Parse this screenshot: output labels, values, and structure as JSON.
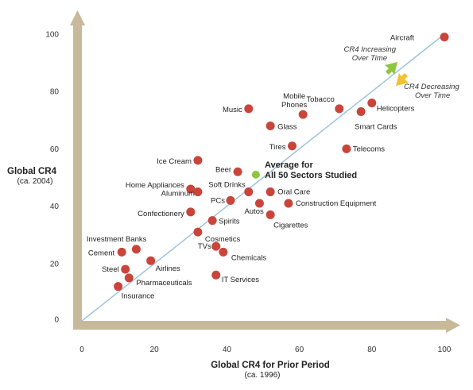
{
  "chart_data": {
    "type": "scatter",
    "xlabel": "Global CR4 for Prior Period",
    "xlabel_sub": "(ca. 1996)",
    "ylabel": "Global CR4",
    "ylabel_sub": "(ca. 2004)",
    "xlim": [
      0,
      100
    ],
    "ylim": [
      0,
      100
    ],
    "xticks": [
      "0",
      "20",
      "40",
      "60",
      "80",
      "100"
    ],
    "yticks": [
      "0",
      "20",
      "40",
      "60",
      "80",
      "100"
    ],
    "grid": false,
    "diagonal": "y = x",
    "colors": {
      "point": "#c9453b",
      "average": "#8dc63f",
      "axis": "#c8b99a",
      "diagonal": "#9ec3e0",
      "increase_arrow": "#8dc63f",
      "decrease_arrow": "#f2c230"
    },
    "points": [
      {
        "label": "Aircraft",
        "x": 100,
        "y": 99
      },
      {
        "label": "Tobacco",
        "x": 71,
        "y": 74
      },
      {
        "label": "Helicopters",
        "x": 80,
        "y": 76
      },
      {
        "label": "Smart Cards",
        "x": 77,
        "y": 73
      },
      {
        "label": "Telecoms",
        "x": 73,
        "y": 60
      },
      {
        "label": "Mobile Phones",
        "x": 61,
        "y": 72
      },
      {
        "label": "Music",
        "x": 46,
        "y": 74
      },
      {
        "label": "Glass",
        "x": 52,
        "y": 68
      },
      {
        "label": "Tires",
        "x": 58,
        "y": 61
      },
      {
        "label": "Ice Cream",
        "x": 32,
        "y": 56
      },
      {
        "label": "Beer",
        "x": 43,
        "y": 52
      },
      {
        "label": "Soft Drinks",
        "x": 46,
        "y": 45
      },
      {
        "label": "Oral Care",
        "x": 52,
        "y": 45
      },
      {
        "label": "Home Appliances",
        "x": 30,
        "y": 46
      },
      {
        "label": "Aluminum",
        "x": 32,
        "y": 45
      },
      {
        "label": "PCs",
        "x": 41,
        "y": 42
      },
      {
        "label": "Autos",
        "x": 49,
        "y": 41
      },
      {
        "label": "Construction Equipment",
        "x": 57,
        "y": 41
      },
      {
        "label": "Cigarettes",
        "x": 52,
        "y": 37
      },
      {
        "label": "Confectionery",
        "x": 30,
        "y": 38
      },
      {
        "label": "Spirits",
        "x": 36,
        "y": 35
      },
      {
        "label": "Cosmetics",
        "x": 32,
        "y": 31
      },
      {
        "label": "Investment Banks",
        "x": 15,
        "y": 25
      },
      {
        "label": "Cement",
        "x": 11,
        "y": 24
      },
      {
        "label": "TVs",
        "x": 37,
        "y": 26
      },
      {
        "label": "Chemicals",
        "x": 39,
        "y": 24
      },
      {
        "label": "Airlines",
        "x": 19,
        "y": 21
      },
      {
        "label": "Steel",
        "x": 12,
        "y": 18
      },
      {
        "label": "Pharmaceuticals",
        "x": 13,
        "y": 15
      },
      {
        "label": "IT Services",
        "x": 37,
        "y": 16
      },
      {
        "label": "Insurance",
        "x": 10,
        "y": 12
      }
    ],
    "average": {
      "label_line1": "Average for",
      "label_line2": "All 50 Sectors Studied",
      "x": 48,
      "y": 51
    },
    "annotations": {
      "increasing": [
        "CR4 Increasing",
        "Over Time"
      ],
      "decreasing": [
        "CR4 Decreasing",
        "Over Time"
      ]
    }
  }
}
